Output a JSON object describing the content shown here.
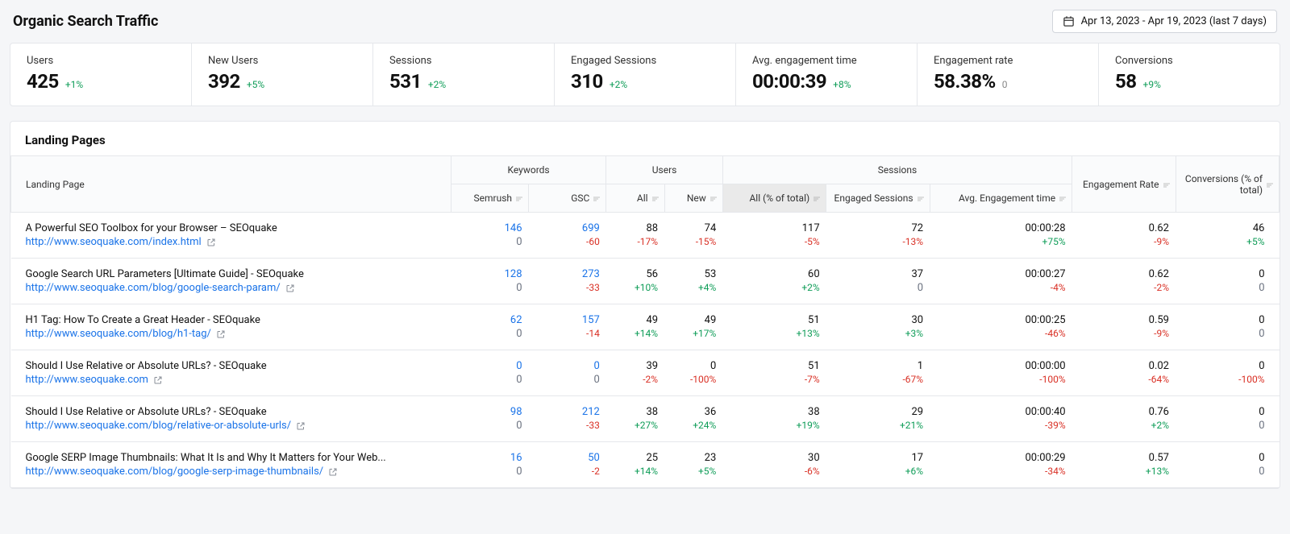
{
  "header": {
    "title": "Organic Search Traffic",
    "date_range": "Apr 13, 2023 - Apr 19, 2023 (last 7 days)"
  },
  "summary": [
    {
      "label": "Users",
      "value": "425",
      "delta": "+1%",
      "delta_class": "delta-pos"
    },
    {
      "label": "New Users",
      "value": "392",
      "delta": "+5%",
      "delta_class": "delta-pos"
    },
    {
      "label": "Sessions",
      "value": "531",
      "delta": "+2%",
      "delta_class": "delta-pos"
    },
    {
      "label": "Engaged Sessions",
      "value": "310",
      "delta": "+2%",
      "delta_class": "delta-pos"
    },
    {
      "label": "Avg. engagement time",
      "value": "00:00:39",
      "delta": "+8%",
      "delta_class": "delta-pos"
    },
    {
      "label": "Engagement rate",
      "value": "58.38%",
      "delta": "0",
      "delta_class": "delta-zero"
    },
    {
      "label": "Conversions",
      "value": "58",
      "delta": "+9%",
      "delta_class": "delta-pos"
    }
  ],
  "table": {
    "title": "Landing Pages",
    "group_headers": {
      "lp": "Landing Page",
      "keywords": "Keywords",
      "users": "Users",
      "sessions": "Sessions",
      "engagement_rate": "Engagement Rate",
      "conversions": "Conversions (% of total)"
    },
    "sub_headers": {
      "semrush": "Semrush",
      "gsc": "GSC",
      "users_all": "All",
      "users_new": "New",
      "sess_all": "All (% of total)",
      "sess_eng": "Engaged Sessions",
      "sess_avg": "Avg. Engagement time"
    },
    "rows": [
      {
        "title": "A Powerful SEO Toolbox for your Browser – SEOquake",
        "url": "http://www.seoquake.com/index.html",
        "semrush": "146",
        "semrush2": "0",
        "gsc": "699",
        "gsc2": "-60",
        "gsc2_class": "delta-neg",
        "u_all": "88",
        "u_all2": "-17%",
        "u_all2_class": "delta-neg",
        "u_new": "74",
        "u_new2": "-15%",
        "u_new2_class": "delta-neg",
        "s_all": "117",
        "s_all2": "-5%",
        "s_all2_class": "delta-neg",
        "s_eng": "72",
        "s_eng2": "-13%",
        "s_eng2_class": "delta-neg",
        "s_avg": "00:00:28",
        "s_avg2": "+75%",
        "s_avg2_class": "delta-pos",
        "er": "0.62",
        "er2": "-9%",
        "er2_class": "delta-neg",
        "conv": "46",
        "conv2": "+5%",
        "conv2_class": "delta-pos"
      },
      {
        "title": "Google Search URL Parameters [Ultimate Guide] - SEOquake",
        "url": "http://www.seoquake.com/blog/google-search-param/",
        "semrush": "128",
        "semrush2": "0",
        "gsc": "273",
        "gsc2": "-33",
        "gsc2_class": "delta-neg",
        "u_all": "56",
        "u_all2": "+10%",
        "u_all2_class": "delta-pos",
        "u_new": "53",
        "u_new2": "+4%",
        "u_new2_class": "delta-pos",
        "s_all": "60",
        "s_all2": "+2%",
        "s_all2_class": "delta-pos",
        "s_eng": "37",
        "s_eng2": "0",
        "s_eng2_class": "sub",
        "s_avg": "00:00:27",
        "s_avg2": "-4%",
        "s_avg2_class": "delta-neg",
        "er": "0.62",
        "er2": "-2%",
        "er2_class": "delta-neg",
        "conv": "0",
        "conv2": "0",
        "conv2_class": "sub"
      },
      {
        "title": "H1 Tag: How To Create a Great Header - SEOquake",
        "url": "http://www.seoquake.com/blog/h1-tag/",
        "semrush": "62",
        "semrush2": "0",
        "gsc": "157",
        "gsc2": "-14",
        "gsc2_class": "delta-neg",
        "u_all": "49",
        "u_all2": "+14%",
        "u_all2_class": "delta-pos",
        "u_new": "49",
        "u_new2": "+17%",
        "u_new2_class": "delta-pos",
        "s_all": "51",
        "s_all2": "+13%",
        "s_all2_class": "delta-pos",
        "s_eng": "30",
        "s_eng2": "+3%",
        "s_eng2_class": "delta-pos",
        "s_avg": "00:00:25",
        "s_avg2": "-46%",
        "s_avg2_class": "delta-neg",
        "er": "0.59",
        "er2": "-9%",
        "er2_class": "delta-neg",
        "conv": "0",
        "conv2": "0",
        "conv2_class": "sub"
      },
      {
        "title": "Should I Use Relative or Absolute URLs? - SEOquake",
        "url": "http://www.seoquake.com",
        "semrush": "0",
        "semrush2": "0",
        "gsc": "0",
        "gsc2": "0",
        "gsc2_class": "sub",
        "u_all": "39",
        "u_all2": "-2%",
        "u_all2_class": "delta-neg",
        "u_new": "0",
        "u_new2": "-100%",
        "u_new2_class": "delta-neg",
        "s_all": "51",
        "s_all2": "-7%",
        "s_all2_class": "delta-neg",
        "s_eng": "1",
        "s_eng2": "-67%",
        "s_eng2_class": "delta-neg",
        "s_avg": "00:00:00",
        "s_avg2": "-100%",
        "s_avg2_class": "delta-neg",
        "er": "0.02",
        "er2": "-64%",
        "er2_class": "delta-neg",
        "conv": "0",
        "conv2": "-100%",
        "conv2_class": "delta-neg"
      },
      {
        "title": "Should I Use Relative or Absolute URLs? - SEOquake",
        "url": "http://www.seoquake.com/blog/relative-or-absolute-urls/",
        "semrush": "98",
        "semrush2": "0",
        "gsc": "212",
        "gsc2": "-33",
        "gsc2_class": "delta-neg",
        "u_all": "38",
        "u_all2": "+27%",
        "u_all2_class": "delta-pos",
        "u_new": "36",
        "u_new2": "+24%",
        "u_new2_class": "delta-pos",
        "s_all": "38",
        "s_all2": "+19%",
        "s_all2_class": "delta-pos",
        "s_eng": "29",
        "s_eng2": "+21%",
        "s_eng2_class": "delta-pos",
        "s_avg": "00:00:40",
        "s_avg2": "-39%",
        "s_avg2_class": "delta-neg",
        "er": "0.76",
        "er2": "+2%",
        "er2_class": "delta-pos",
        "conv": "0",
        "conv2": "0",
        "conv2_class": "sub"
      },
      {
        "title": "Google SERP Image Thumbnails: What It Is and Why It Matters for Your Web...",
        "url": "http://www.seoquake.com/blog/google-serp-image-thumbnails/",
        "semrush": "16",
        "semrush2": "0",
        "gsc": "50",
        "gsc2": "-2",
        "gsc2_class": "delta-neg",
        "u_all": "25",
        "u_all2": "+14%",
        "u_all2_class": "delta-pos",
        "u_new": "23",
        "u_new2": "+5%",
        "u_new2_class": "delta-pos",
        "s_all": "30",
        "s_all2": "-6%",
        "s_all2_class": "delta-neg",
        "s_eng": "17",
        "s_eng2": "+6%",
        "s_eng2_class": "delta-pos",
        "s_avg": "00:00:29",
        "s_avg2": "-34%",
        "s_avg2_class": "delta-neg",
        "er": "0.57",
        "er2": "+13%",
        "er2_class": "delta-pos",
        "conv": "0",
        "conv2": "0",
        "conv2_class": "sub"
      }
    ]
  }
}
